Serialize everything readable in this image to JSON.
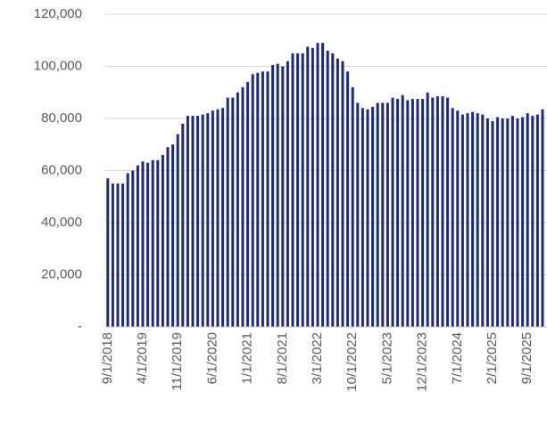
{
  "chart_data": {
    "type": "bar",
    "color": "#1f2a7d",
    "grid": true,
    "ylim": [
      0,
      120000
    ],
    "yticks": [
      {
        "value": 0,
        "label": "-"
      },
      {
        "value": 20000,
        "label": "20,000"
      },
      {
        "value": 40000,
        "label": "40,000"
      },
      {
        "value": 60000,
        "label": "60,000"
      },
      {
        "value": 80000,
        "label": "80,000"
      },
      {
        "value": 100000,
        "label": "100,000"
      },
      {
        "value": 120000,
        "label": "120,000"
      }
    ],
    "categories": [
      "9/1/2018",
      null,
      null,
      null,
      null,
      null,
      null,
      "4/1/2019",
      null,
      null,
      null,
      null,
      null,
      null,
      "11/1/2019",
      null,
      null,
      null,
      null,
      null,
      null,
      "6/1/2020",
      null,
      null,
      null,
      null,
      null,
      null,
      "1/1/2021",
      null,
      null,
      null,
      null,
      null,
      null,
      "8/1/2021",
      null,
      null,
      null,
      null,
      null,
      null,
      "3/1/2022",
      null,
      null,
      null,
      null,
      null,
      null,
      "10/1/2022",
      null,
      null,
      null,
      null,
      null,
      null,
      "5/1/2023",
      null,
      null,
      null,
      null,
      null,
      null,
      "12/1/2023",
      null,
      null,
      null,
      null,
      null,
      null,
      "7/1/2024",
      null,
      null,
      null,
      null,
      null,
      null,
      "2/1/2025",
      null,
      null,
      null,
      null,
      null,
      null,
      "9/1/2025",
      null,
      null,
      null
    ],
    "values": [
      57000,
      55000,
      55000,
      55000,
      59000,
      60000,
      62000,
      63500,
      63000,
      64000,
      64000,
      66000,
      69000,
      70000,
      74000,
      78000,
      81000,
      81000,
      81000,
      81500,
      82000,
      83000,
      83500,
      84000,
      88000,
      88000,
      90000,
      92000,
      94000,
      97000,
      97500,
      98000,
      98000,
      100500,
      101000,
      100000,
      102000,
      105000,
      105000,
      105000,
      107500,
      107000,
      109000,
      109000,
      106000,
      105000,
      103000,
      102000,
      98000,
      92000,
      86000,
      84000,
      83500,
      84500,
      86000,
      86000,
      86000,
      88000,
      87500,
      89000,
      87000,
      87500,
      87500,
      87500,
      90000,
      88000,
      88500,
      88500,
      88000,
      84000,
      83000,
      81500,
      82000,
      82500,
      82000,
      81500,
      80000,
      79000,
      80500,
      80000,
      80000,
      81000,
      80000,
      80500,
      82000,
      81000,
      81500,
      83500
    ]
  }
}
